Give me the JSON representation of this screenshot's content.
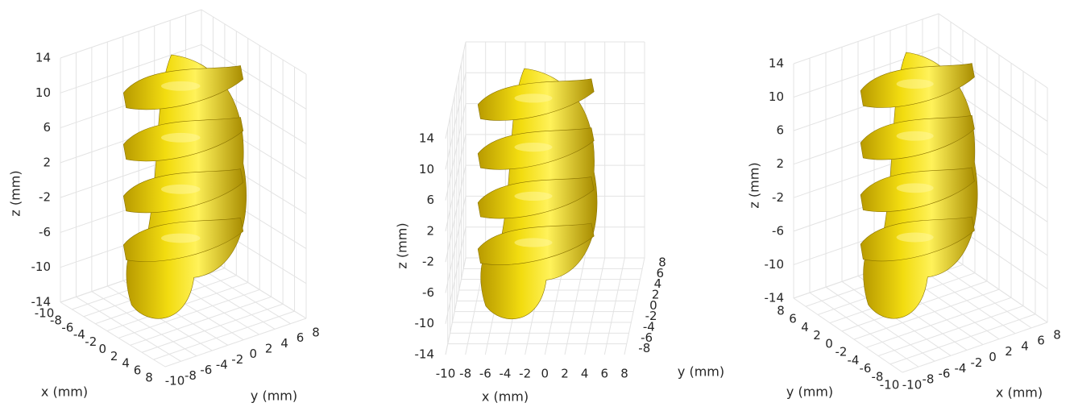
{
  "chart_data": [
    {
      "type": "surface3d",
      "xlabel": "x (mm)",
      "ylabel": "y (mm)",
      "zlabel": "z (mm)",
      "xlim": [
        -10,
        8
      ],
      "ylim": [
        -10,
        8
      ],
      "zlim": [
        -14,
        14
      ],
      "xticks": [
        -10,
        -8,
        -6,
        -4,
        -2,
        0,
        2,
        4,
        6,
        8
      ],
      "yticks": [
        -10,
        -8,
        -6,
        -4,
        -2,
        0,
        2,
        4,
        6,
        8
      ],
      "zticks": [
        -14,
        -10,
        -6,
        -2,
        2,
        6,
        10,
        14
      ],
      "color": "#e8d000",
      "grid": true
    },
    {
      "type": "surface3d",
      "xlabel": "x (mm)",
      "ylabel": "y (mm)",
      "zlabel": "z (mm)",
      "xlim": [
        -10,
        8
      ],
      "ylim": [
        -10,
        8
      ],
      "zlim": [
        -14,
        14
      ],
      "xticks": [
        -10,
        -8,
        -6,
        -4,
        -2,
        0,
        2,
        4,
        6,
        8
      ],
      "yticks": [
        -8,
        -6,
        -4,
        -2,
        0,
        2,
        4,
        6,
        8
      ],
      "zticks": [
        -14,
        -10,
        -6,
        -2,
        2,
        6,
        10,
        14
      ],
      "color": "#e8d000",
      "grid": true
    },
    {
      "type": "surface3d",
      "xlabel": "x (mm)",
      "ylabel": "y (mm)",
      "zlabel": "z (mm)",
      "xlim": [
        -10,
        8
      ],
      "ylim": [
        -10,
        8
      ],
      "zlim": [
        -14,
        14
      ],
      "xticks": [
        -10,
        -8,
        -6,
        -4,
        -2,
        0,
        2,
        4,
        6,
        8
      ],
      "yticks": [
        -10,
        -8,
        -6,
        -4,
        -2,
        0,
        2,
        4,
        6,
        8
      ],
      "zticks": [
        -14,
        -10,
        -6,
        -2,
        2,
        6,
        10,
        14
      ],
      "color": "#e8d000",
      "grid": true
    }
  ]
}
